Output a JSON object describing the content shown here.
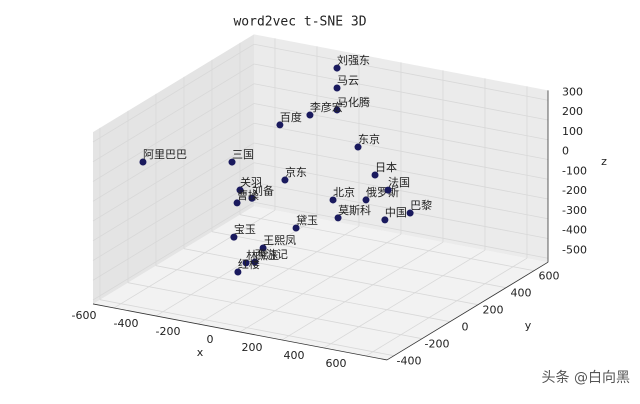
{
  "chart_data": {
    "type": "scatter3d",
    "title": "word2vec t-SNE 3D",
    "xlabel": "x",
    "ylabel": "y",
    "zlabel": "z",
    "color": "#1a1a5e",
    "xlim": [
      -700,
      700
    ],
    "ylim": [
      -450,
      700
    ],
    "zlim": [
      -520,
      350
    ],
    "xticks": [
      -600,
      -400,
      -200,
      0,
      200,
      400,
      600
    ],
    "yticks": [
      -400,
      -200,
      0,
      200,
      400,
      600
    ],
    "zticks": [
      -500,
      -400,
      -300,
      -200,
      -100,
      0,
      100,
      200,
      300
    ],
    "grid": true,
    "points": {
      "labels": [
        "刘强东",
        "马云",
        "马化腾",
        "李彦宏",
        "百度",
        "东京",
        "阿里巴巴",
        "三国",
        "京东",
        "日本",
        "关羽",
        "刘备",
        "曹操",
        "北京",
        "俄罗斯",
        "法国",
        "巴黎",
        "中国",
        "莫斯科",
        "黛玉",
        "宝玉",
        "王熙凤",
        "西游记",
        "林黛玉",
        "红楼"
      ],
      "x": [
        -238,
        -238,
        -238,
        -367,
        -510,
        62,
        -562,
        -338,
        -86,
        143,
        -300,
        -243,
        -314,
        -57,
        100,
        205,
        310,
        190,
        -33,
        -33,
        -329,
        -190,
        -229,
        -271,
        -310
      ],
      "y": [
        600,
        600,
        600,
        600,
        600,
        300,
        -300,
        0,
        0,
        300,
        0,
        0,
        0,
        300,
        300,
        300,
        300,
        300,
        300,
        0,
        0,
        0,
        0,
        0,
        0
      ],
      "z": [
        316,
        215,
        104,
        52,
        -27,
        106,
        162,
        78,
        38,
        -19,
        -56,
        -86,
        -124,
        -186,
        -154,
        -83,
        -178,
        -237,
        -272,
        -194,
        -300,
        -327,
        -406,
        -419,
        -473
      ]
    },
    "watermark": "头条 @白向黑"
  }
}
